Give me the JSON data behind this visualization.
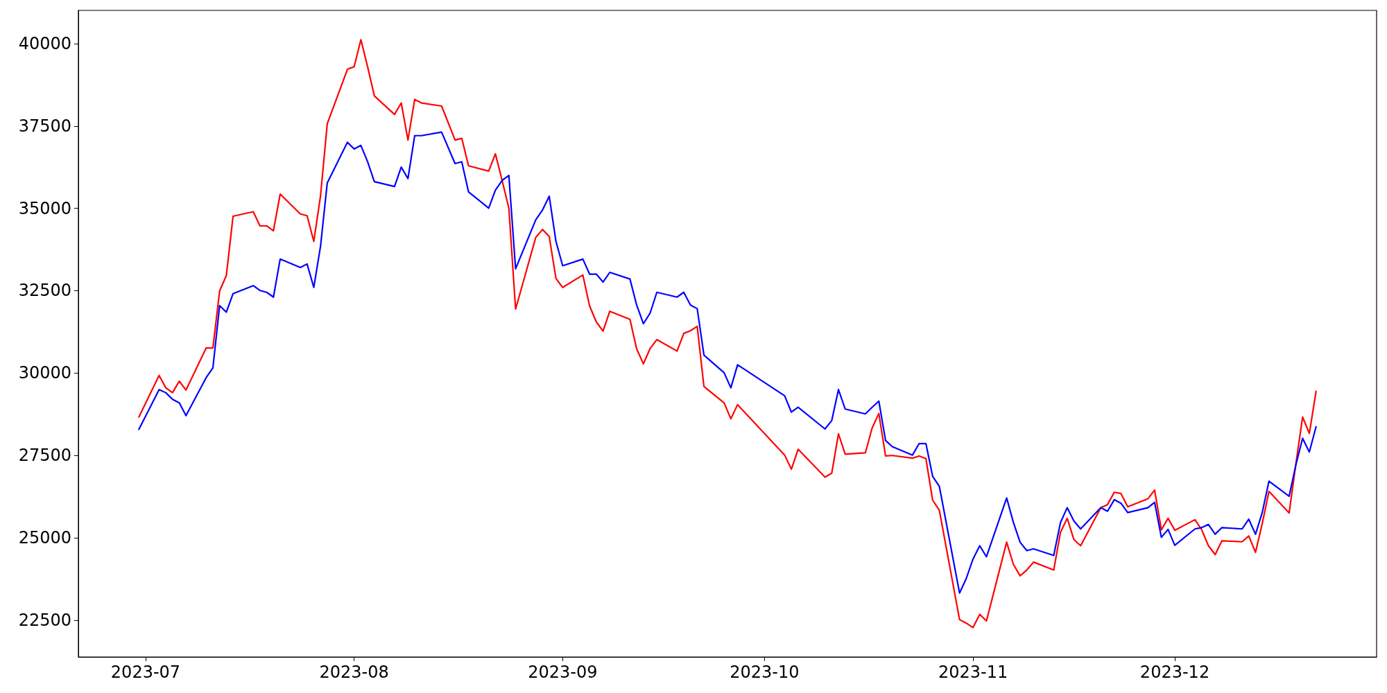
{
  "chart_data": {
    "type": "line",
    "x": [
      "2023-06-30",
      "2023-07-03",
      "2023-07-04",
      "2023-07-05",
      "2023-07-06",
      "2023-07-07",
      "2023-07-10",
      "2023-07-11",
      "2023-07-12",
      "2023-07-13",
      "2023-07-14",
      "2023-07-17",
      "2023-07-18",
      "2023-07-19",
      "2023-07-20",
      "2023-07-21",
      "2023-07-24",
      "2023-07-25",
      "2023-07-26",
      "2023-07-27",
      "2023-07-28",
      "2023-07-31",
      "2023-08-01",
      "2023-08-02",
      "2023-08-03",
      "2023-08-04",
      "2023-08-07",
      "2023-08-08",
      "2023-08-09",
      "2023-08-10",
      "2023-08-11",
      "2023-08-14",
      "2023-08-16",
      "2023-08-17",
      "2023-08-18",
      "2023-08-21",
      "2023-08-22",
      "2023-08-23",
      "2023-08-24",
      "2023-08-25",
      "2023-08-28",
      "2023-08-29",
      "2023-08-30",
      "2023-08-31",
      "2023-09-01",
      "2023-09-04",
      "2023-09-05",
      "2023-09-06",
      "2023-09-07",
      "2023-09-08",
      "2023-09-11",
      "2023-09-12",
      "2023-09-13",
      "2023-09-14",
      "2023-09-15",
      "2023-09-18",
      "2023-09-19",
      "2023-09-20",
      "2023-09-21",
      "2023-09-22",
      "2023-09-25",
      "2023-09-26",
      "2023-09-27",
      "2023-10-04",
      "2023-10-05",
      "2023-10-06",
      "2023-10-10",
      "2023-10-11",
      "2023-10-12",
      "2023-10-13",
      "2023-10-16",
      "2023-10-17",
      "2023-10-18",
      "2023-10-19",
      "2023-10-20",
      "2023-10-23",
      "2023-10-24",
      "2023-10-25",
      "2023-10-26",
      "2023-10-27",
      "2023-10-30",
      "2023-10-31",
      "2023-11-01",
      "2023-11-02",
      "2023-11-03",
      "2023-11-06",
      "2023-11-07",
      "2023-11-08",
      "2023-11-09",
      "2023-11-10",
      "2023-11-13",
      "2023-11-14",
      "2023-11-15",
      "2023-11-16",
      "2023-11-17",
      "2023-11-20",
      "2023-11-21",
      "2023-11-22",
      "2023-11-23",
      "2023-11-24",
      "2023-11-27",
      "2023-11-28",
      "2023-11-29",
      "2023-11-30",
      "2023-12-01",
      "2023-12-04",
      "2023-12-05",
      "2023-12-06",
      "2023-12-07",
      "2023-12-08",
      "2023-12-11",
      "2023-12-12",
      "2023-12-13",
      "2023-12-14",
      "2023-12-15",
      "2023-12-18",
      "2023-12-19",
      "2023-12-20",
      "2023-12-21",
      "2023-12-22"
    ],
    "series": [
      {
        "color": "#ff0000",
        "values": [
          28665,
          29928,
          29551,
          29404,
          29753,
          29484,
          30760,
          30760,
          32493,
          32963,
          34762,
          34897,
          34467,
          34467,
          34319,
          35434,
          34830,
          34776,
          33997,
          35380,
          37569,
          39221,
          39302,
          40121,
          39302,
          38415,
          37851,
          38200,
          37072,
          38308,
          38200,
          38106,
          37072,
          37126,
          36293,
          36132,
          36656,
          35844,
          35004,
          31942,
          34118,
          34359,
          34145,
          32869,
          32600,
          32976,
          32036,
          31553,
          31270,
          31875,
          31633,
          30733,
          30277,
          30747,
          31015,
          30666,
          31203,
          31284,
          31418,
          29592,
          29095,
          28611,
          29041,
          27510,
          27081,
          27685,
          26839,
          26960,
          28155,
          27537,
          27577,
          28329,
          28772,
          27483,
          27497,
          27416,
          27483,
          27403,
          26140,
          25831,
          22514,
          22407,
          22272,
          22675,
          22474,
          24865,
          24193,
          23844,
          24019,
          24260,
          24019,
          25160,
          25590,
          24945,
          24757,
          25912,
          26006,
          26382,
          26342,
          25939,
          26181,
          26449,
          25241,
          25590,
          25227,
          25549,
          25241,
          24757,
          24489,
          24905,
          24878,
          25053,
          24556,
          25429,
          26409,
          25751,
          27242,
          28665,
          28168,
          29444
        ]
      },
      {
        "color": "#0000ff",
        "values": [
          28289,
          29498,
          29404,
          29202,
          29095,
          28705,
          29860,
          30156,
          32049,
          31848,
          32412,
          32654,
          32506,
          32452,
          32305,
          33460,
          33204,
          33312,
          32600,
          33849,
          35770,
          37005,
          36804,
          36911,
          36414,
          35810,
          35662,
          36253,
          35904,
          37207,
          37207,
          37314,
          36360,
          36414,
          35501,
          35004,
          35555,
          35850,
          35998,
          33164,
          34655,
          34950,
          35367,
          33997,
          33258,
          33460,
          33003,
          33003,
          32761,
          33057,
          32855,
          32063,
          31499,
          31821,
          32452,
          32305,
          32452,
          32063,
          31955,
          30545,
          30008,
          29551,
          30250,
          29310,
          28813,
          28960,
          28302,
          28558,
          29498,
          28907,
          28759,
          28960,
          29149,
          27953,
          27765,
          27510,
          27859,
          27859,
          26865,
          26557,
          23320,
          23763,
          24354,
          24757,
          24421,
          26208,
          25469,
          24865,
          24609,
          24663,
          24462,
          25456,
          25912,
          25509,
          25267,
          25912,
          25805,
          26154,
          26046,
          25764,
          25912,
          26073,
          25012,
          25254,
          24771,
          25267,
          25308,
          25402,
          25106,
          25308,
          25267,
          25563,
          25106,
          25764,
          26718,
          26261,
          27215,
          28020,
          27604,
          28370
        ]
      }
    ],
    "xlim": [
      "2023-06-21",
      "2023-12-31"
    ],
    "xticks": [
      {
        "value": "2023-07-01",
        "label": "2023-07"
      },
      {
        "value": "2023-08-01",
        "label": "2023-08"
      },
      {
        "value": "2023-09-01",
        "label": "2023-09"
      },
      {
        "value": "2023-10-01",
        "label": "2023-10"
      },
      {
        "value": "2023-11-01",
        "label": "2023-11"
      },
      {
        "value": "2023-12-01",
        "label": "2023-12"
      }
    ],
    "ylim": [
      21380,
      41010
    ],
    "yticks": [
      22500,
      25000,
      27500,
      30000,
      32500,
      35000,
      37500,
      40000
    ],
    "grid": false,
    "marker": "none",
    "line_style": "solid"
  }
}
